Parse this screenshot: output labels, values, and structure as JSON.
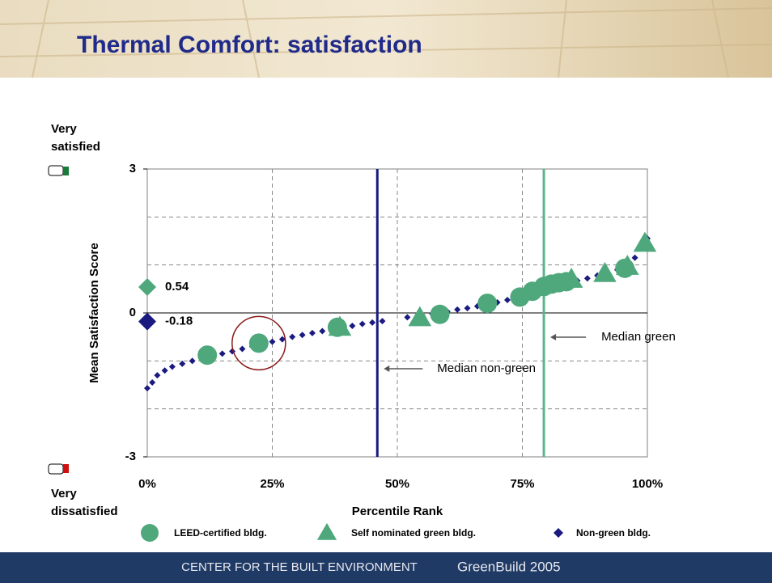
{
  "header": {
    "title": "Thermal Comfort: satisfaction"
  },
  "footer": {
    "left": "CENTER FOR THE BUILT ENVIRONMENT",
    "right": "GreenBuild 2005"
  },
  "chart_data": {
    "type": "scatter",
    "ylabel": "Mean Satisfaction Score",
    "xlabel": "Percentile Rank",
    "top_label": "Very satisfied",
    "bottom_label": "Very dissatisfied",
    "xlim": [
      0,
      100
    ],
    "ylim": [
      -3,
      3
    ],
    "xticks": [
      {
        "value": 0,
        "label": "0%"
      },
      {
        "value": 25,
        "label": "25%"
      },
      {
        "value": 50,
        "label": "50%"
      },
      {
        "value": 75,
        "label": "75%"
      },
      {
        "value": 100,
        "label": "100%"
      }
    ],
    "yticks": [
      -3,
      0,
      3
    ],
    "grid": true,
    "series": [
      {
        "name": "LEED-certified bldg.",
        "marker": "circle",
        "color": "#4ea87c",
        "x": [
          12,
          22.3,
          38,
          58.5,
          68,
          74.5,
          77,
          79.3,
          80.8,
          82.3,
          83.8,
          95.5
        ],
        "values": [
          -0.88,
          -0.63,
          -0.3,
          -0.03,
          0.2,
          0.33,
          0.45,
          0.55,
          0.6,
          0.63,
          0.65,
          0.93
        ]
      },
      {
        "name": "Self nominated green bldg.",
        "marker": "triangle",
        "color": "#4ea87c",
        "x": [
          38.5,
          54.5,
          84.8,
          91.5,
          96,
          99.5
        ],
        "values": [
          -0.3,
          -0.1,
          0.7,
          0.82,
          0.97,
          1.45
        ]
      },
      {
        "name": "Non-green bldg.",
        "marker": "diamond",
        "color": "#1a1a80",
        "x": [
          0,
          1,
          2,
          3.5,
          5,
          7,
          9,
          11,
          13,
          15,
          17,
          19,
          21,
          23,
          25,
          27,
          29,
          31,
          33,
          35,
          37,
          39,
          41,
          43,
          45,
          47,
          52,
          55,
          57,
          60,
          62,
          64,
          66,
          68,
          70,
          72,
          74,
          76,
          78,
          80,
          82,
          84,
          86,
          88,
          90,
          92,
          94,
          96,
          97.5,
          99,
          100
        ],
        "values": [
          -1.57,
          -1.45,
          -1.3,
          -1.2,
          -1.12,
          -1.06,
          -1.0,
          -0.95,
          -0.9,
          -0.85,
          -0.8,
          -0.75,
          -0.7,
          -0.65,
          -0.6,
          -0.55,
          -0.5,
          -0.46,
          -0.42,
          -0.38,
          -0.34,
          -0.3,
          -0.27,
          -0.23,
          -0.2,
          -0.17,
          -0.09,
          -0.05,
          -0.02,
          0.03,
          0.07,
          0.1,
          0.14,
          0.18,
          0.22,
          0.27,
          0.32,
          0.38,
          0.44,
          0.5,
          0.56,
          0.62,
          0.67,
          0.72,
          0.78,
          0.83,
          0.9,
          1.0,
          1.15,
          1.35,
          1.55
        ]
      }
    ],
    "means": [
      {
        "value": 0.54,
        "label": "0.54",
        "color": "#4ea87c"
      },
      {
        "value": -0.18,
        "label": "-0.18",
        "color": "#1a1a80"
      }
    ],
    "medians": [
      {
        "value": 46,
        "label": "Median non-green",
        "color": "#1a1a80"
      },
      {
        "value": 79.3,
        "label": "Median green",
        "color": "#5bb58c"
      }
    ]
  }
}
